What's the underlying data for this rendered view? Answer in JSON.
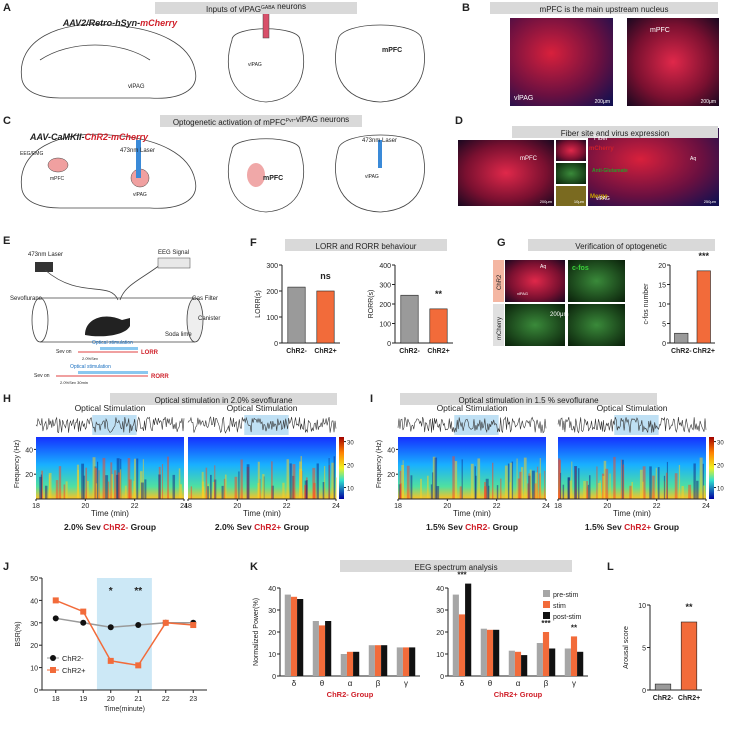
{
  "A": {
    "letter": "A",
    "title": [
      "Inputs of vlPAG",
      "GABA",
      " neurons"
    ],
    "virus": [
      "AAV2/Retro-hSyn-",
      "mCherry"
    ],
    "labels": [
      "vlPAG",
      "mPFC",
      "vlPAG"
    ]
  },
  "B": {
    "letter": "B",
    "title": "mPFC is the main upstream nucleus",
    "labels": [
      "vlPAG",
      "mPFC"
    ],
    "scale": [
      "200μm",
      "200μm"
    ]
  },
  "C": {
    "letter": "C",
    "title": [
      "Optogenetic activation of mPFC",
      "Pvr",
      "-vlPAG neurons"
    ],
    "virus": [
      "AAV-CaMKII-",
      "ChR2-mCherry"
    ],
    "labels": [
      "EEG/EMG",
      "473nm Laser",
      "mPFC",
      "vlPAG",
      "mPFC",
      "473nm Laser",
      "vlPAG"
    ]
  },
  "D": {
    "letter": "D",
    "title": "Fiber site and virus expression",
    "labels": [
      "mPFC",
      "mCherry",
      "Anti-Glutamate",
      "Merge",
      "Fiber",
      "Aq",
      "vlPAG"
    ],
    "scale": [
      "200μm",
      "10μm",
      "250μm"
    ]
  },
  "E": {
    "letter": "E",
    "labels": [
      "473nm Laser",
      "EEG Signal",
      "Sevoflurane",
      "Gas Filter",
      "Canister",
      "Soda lime"
    ],
    "protocol": [
      {
        "stim": "Optical stimulation",
        "sev": "Sev on",
        "dose": "2.0%Sev",
        "end": "LORR"
      },
      {
        "stim": "Optical stimulation",
        "sev": "Sev on",
        "dose": "2.0%Sev 30min",
        "end": "RORR"
      }
    ]
  },
  "F": {
    "letter": "F",
    "title": "LORR and RORR behaviour",
    "charts": [
      {
        "ylabel": "LORR(s)",
        "ylim": [
          0,
          300
        ],
        "yticks": [
          0,
          100,
          200,
          300
        ],
        "categories": [
          "ChR2-",
          "ChR2+"
        ],
        "values": [
          215,
          200
        ],
        "colors": [
          "#9a9a9a",
          "#f26b3a"
        ],
        "annotation": "ns"
      },
      {
        "ylabel": "RORR(s)",
        "ylim": [
          0,
          400
        ],
        "yticks": [
          0,
          100,
          200,
          300,
          400
        ],
        "categories": [
          "ChR2-",
          "ChR2+"
        ],
        "values": [
          245,
          175
        ],
        "colors": [
          "#9a9a9a",
          "#f26b3a"
        ],
        "annotation": "**"
      }
    ]
  },
  "G": {
    "letter": "G",
    "title": "Verification of optogenetic",
    "labels": [
      "ChR2",
      "mCherry",
      "c-fos",
      "Aq",
      "vlPAG"
    ],
    "scale": "200μm",
    "chart": {
      "ylabel": "c-fos number",
      "ylim": [
        0,
        20
      ],
      "yticks": [
        0,
        5,
        10,
        15,
        20
      ],
      "categories": [
        "ChR2-",
        "ChR2+"
      ],
      "values": [
        2.5,
        18.5
      ],
      "colors": [
        "#9a9a9a",
        "#f26b3a"
      ],
      "annotation": "***"
    }
  },
  "H": {
    "letter": "H",
    "title": "Optical stimulation in 2.0% sevoflurane",
    "stim": "Optical Stimulation",
    "spec": {
      "ylabel": "Frequency (Hz)",
      "ylim": [
        0,
        50
      ],
      "yticks": [
        20,
        40
      ],
      "xlim": [
        18,
        24
      ],
      "xticks": [
        18,
        20,
        22,
        24
      ],
      "xlabel": "Time (min)",
      "cbar_lim": [
        5,
        32
      ],
      "cbar_ticks": [
        10,
        20,
        30
      ]
    },
    "groups": [
      [
        "2.0% Sev ",
        "ChR2-",
        " Group"
      ],
      [
        "2.0% Sev ",
        "ChR2+",
        " Group"
      ]
    ]
  },
  "I": {
    "letter": "I",
    "title": "Optical stimulation in 1.5 % sevoflurane",
    "stim": "Optical Stimulation",
    "spec": {
      "ylabel": "Frequency (Hz)",
      "ylim": [
        0,
        50
      ],
      "yticks": [
        20,
        40
      ],
      "xlim": [
        18,
        24
      ],
      "xticks": [
        18,
        20,
        22,
        24
      ],
      "xlabel": "Time (min)",
      "cbar_lim": [
        5,
        32
      ],
      "cbar_ticks": [
        10,
        20,
        30
      ]
    },
    "groups": [
      [
        "1.5% Sev ",
        "ChR2-",
        " Group"
      ],
      [
        "1.5% Sev ",
        "ChR2+",
        " Group"
      ]
    ]
  },
  "J": {
    "letter": "J",
    "chart": {
      "ylabel": "BSR(%)",
      "xlabel": "Time(minute)",
      "x": [
        18,
        19,
        20,
        21,
        22,
        23
      ],
      "xlim": [
        17.5,
        23.5
      ],
      "xticks": [
        18,
        19,
        20,
        21,
        22,
        23
      ],
      "ylim": [
        0,
        50
      ],
      "yticks": [
        0,
        10,
        20,
        30,
        40,
        50
      ],
      "series": [
        {
          "name": "ChR2-",
          "color": "#9a9a9a",
          "values": [
            32,
            30,
            28,
            29,
            30,
            30
          ]
        },
        {
          "name": "ChR2+",
          "color": "#f26b3a",
          "values": [
            40,
            35,
            13,
            11,
            30,
            29
          ]
        }
      ],
      "annotations": [
        null,
        null,
        "*",
        "**",
        null,
        null
      ]
    }
  },
  "K": {
    "letter": "K",
    "title": "EEG spectrum analysis",
    "charts": [
      {
        "ylabel": "Normalized Power(%)",
        "xlabel": "ChR2- Group",
        "ylim": [
          0,
          40
        ],
        "yticks": [
          0,
          10,
          20,
          30,
          40
        ],
        "categories": [
          "δ",
          "θ",
          "α",
          "β",
          "γ"
        ],
        "series": [
          {
            "name": "pre-stim",
            "color": "#a6a6a6",
            "values": [
              37,
              25,
              10,
              14,
              13
            ]
          },
          {
            "name": "stim",
            "color": "#f26b3a",
            "values": [
              36,
              23,
              11,
              14,
              13
            ]
          },
          {
            "name": "post-stim",
            "color": "#111111",
            "values": [
              35,
              25,
              11,
              14,
              13
            ]
          }
        ]
      },
      {
        "xlabel": "ChR2+ Group",
        "ylim": [
          0,
          40
        ],
        "yticks": [
          0,
          10,
          20,
          30,
          40
        ],
        "categories": [
          "δ",
          "θ",
          "α",
          "β",
          "γ"
        ],
        "series": [
          {
            "name": "pre-stim",
            "color": "#a6a6a6",
            "values": [
              37,
              21.5,
              11.5,
              15,
              12.5
            ]
          },
          {
            "name": "stim",
            "color": "#f26b3a",
            "values": [
              28,
              21,
              11,
              20,
              18
            ]
          },
          {
            "name": "post-stim",
            "color": "#111111",
            "values": [
              42,
              21,
              9.5,
              12.5,
              11
            ]
          }
        ],
        "annotations": [
          "***",
          null,
          null,
          "***",
          "**"
        ]
      }
    ]
  },
  "L": {
    "letter": "L",
    "chart": {
      "ylabel": "Arousal score",
      "ylim": [
        0,
        10
      ],
      "yticks": [
        0,
        5,
        10
      ],
      "categories": [
        "ChR2-",
        "ChR2+"
      ],
      "values": [
        0.7,
        8
      ],
      "colors": [
        "#9a9a9a",
        "#f26b3a"
      ],
      "annotation": "**"
    }
  }
}
